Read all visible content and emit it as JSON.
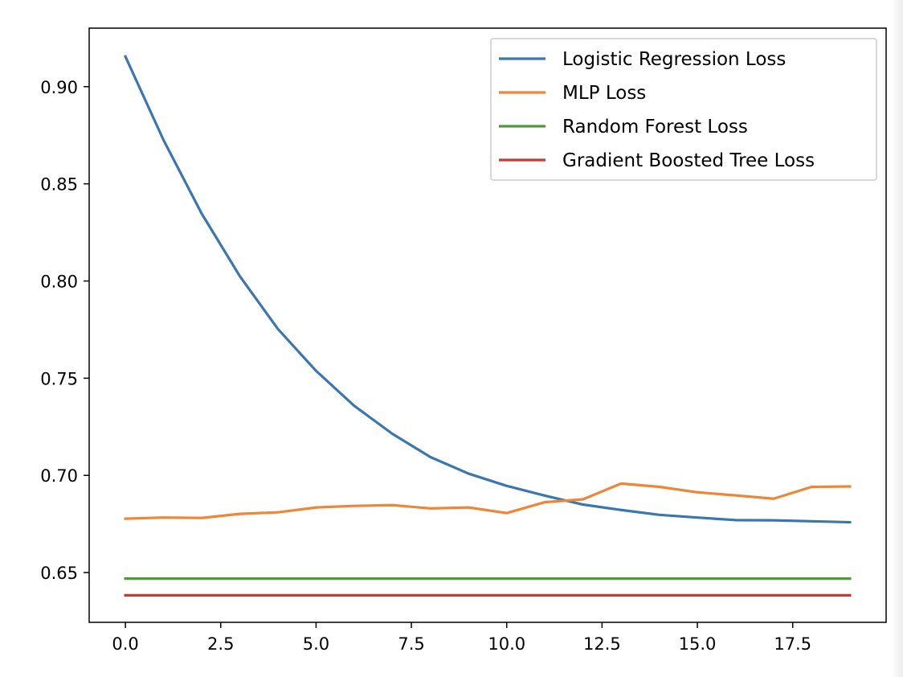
{
  "chart_data": {
    "type": "line",
    "title": "",
    "xlabel": "",
    "ylabel": "",
    "xlim": [
      -0.95,
      19.95
    ],
    "ylim": [
      0.6244,
      0.9301
    ],
    "x_ticks": [
      0.0,
      2.5,
      5.0,
      7.5,
      10.0,
      12.5,
      15.0,
      17.5
    ],
    "x_tick_labels": [
      "0.0",
      "2.5",
      "5.0",
      "7.5",
      "10.0",
      "12.5",
      "15.0",
      "17.5"
    ],
    "y_ticks": [
      0.65,
      0.7,
      0.75,
      0.8,
      0.85,
      0.9
    ],
    "y_tick_labels": [
      "0.65",
      "0.70",
      "0.75",
      "0.80",
      "0.85",
      "0.90"
    ],
    "grid": false,
    "legend_position": "top-right",
    "x": [
      0,
      1,
      2,
      3,
      4,
      5,
      6,
      7,
      8,
      9,
      10,
      11,
      12,
      13,
      14,
      15,
      16,
      17,
      18,
      19
    ],
    "series": [
      {
        "name": "Logistic Regression Loss",
        "color": "#3a76af",
        "values": [
          0.9155,
          0.8725,
          0.8347,
          0.8025,
          0.7753,
          0.7538,
          0.7358,
          0.7214,
          0.7094,
          0.7009,
          0.6946,
          0.6896,
          0.685,
          0.6822,
          0.6797,
          0.6783,
          0.677,
          0.6769,
          0.6764,
          0.6759
        ]
      },
      {
        "name": "MLP Loss",
        "color": "#ef8636",
        "values": [
          0.6777,
          0.6783,
          0.6781,
          0.6802,
          0.681,
          0.6835,
          0.6843,
          0.6847,
          0.683,
          0.6835,
          0.6806,
          0.6862,
          0.6877,
          0.6958,
          0.6941,
          0.6913,
          0.6897,
          0.688,
          0.6941,
          0.6943
        ]
      },
      {
        "name": "Random Forest Loss",
        "color": "#4e9a3a",
        "values": [
          0.6469,
          0.6469,
          0.6469,
          0.6469,
          0.6469,
          0.6469,
          0.6469,
          0.6469,
          0.6469,
          0.6469,
          0.6469,
          0.6469,
          0.6469,
          0.6469,
          0.6469,
          0.6469,
          0.6469,
          0.6469,
          0.6469,
          0.6469
        ]
      },
      {
        "name": "Gradient Boosted Tree Loss",
        "color": "#c53a32",
        "values": [
          0.6383,
          0.6383,
          0.6383,
          0.6383,
          0.6383,
          0.6383,
          0.6383,
          0.6383,
          0.6383,
          0.6383,
          0.6383,
          0.6383,
          0.6383,
          0.6383,
          0.6383,
          0.6383,
          0.6383,
          0.6383,
          0.6383,
          0.6383
        ]
      }
    ]
  }
}
